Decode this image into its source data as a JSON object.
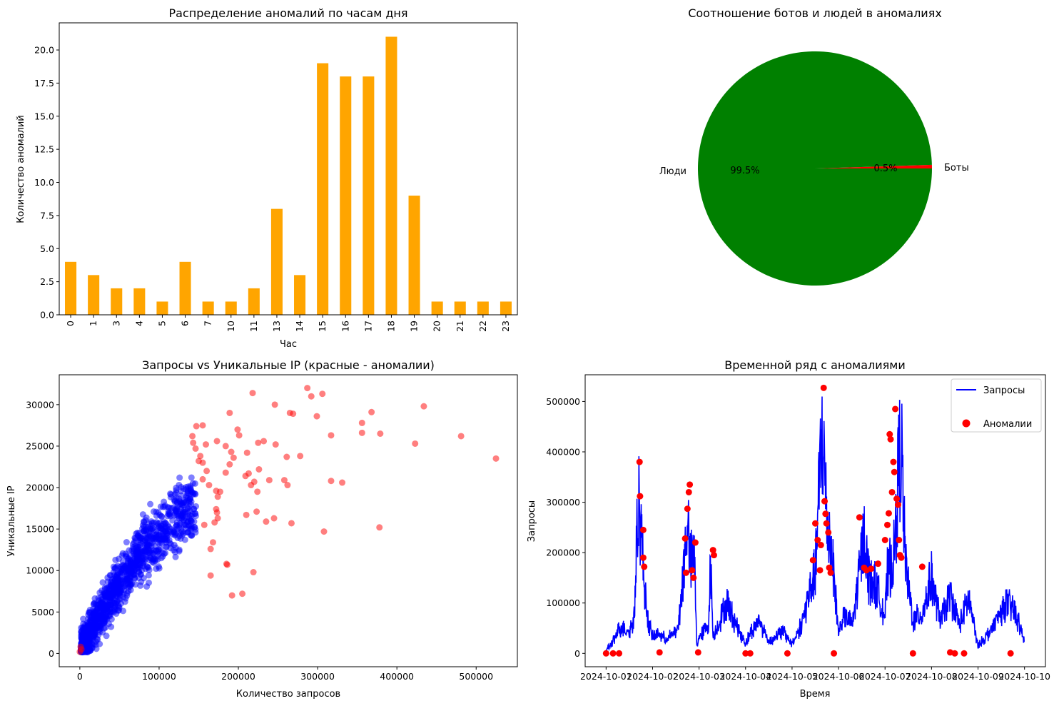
{
  "chart_data": [
    {
      "type": "bar",
      "title": "Распределение аномалий по часам дня",
      "xlabel": "Час",
      "ylabel": "Количество аномалий",
      "categories": [
        "0",
        "1",
        "3",
        "4",
        "5",
        "6",
        "7",
        "10",
        "11",
        "13",
        "14",
        "15",
        "16",
        "17",
        "18",
        "19",
        "20",
        "21",
        "22",
        "23"
      ],
      "values": [
        4,
        3,
        2,
        2,
        1,
        4,
        1,
        1,
        2,
        8,
        3,
        19,
        18,
        18,
        21,
        9,
        1,
        1,
        1,
        1
      ],
      "ylim": [
        0,
        22.05
      ],
      "yticks": [
        "0.0",
        "2.5",
        "5.0",
        "7.5",
        "10.0",
        "12.5",
        "15.0",
        "17.5",
        "20.0"
      ],
      "color": "#ffa500",
      "grid": false
    },
    {
      "type": "pie",
      "title": "Соотношение ботов и людей в аномалиях",
      "slices": [
        {
          "label": "Боты",
          "value": 0.5,
          "pct": "0.5%",
          "color": "#ff0000"
        },
        {
          "label": "Люди",
          "value": 99.5,
          "pct": "99.5%",
          "color": "#008000"
        }
      ]
    },
    {
      "type": "scatter",
      "title": "Запросы vs Уникальные IP (красные - аномалии)",
      "xlabel": "Количество запросов",
      "ylabel": "Уникальные IP",
      "xlim": [
        -26000,
        552000
      ],
      "ylim": [
        -1600,
        33600
      ],
      "xticks": [
        0,
        100000,
        200000,
        300000,
        400000,
        500000
      ],
      "yticks": [
        0,
        5000,
        10000,
        15000,
        20000,
        25000,
        30000
      ],
      "series": [
        {
          "name": "normal",
          "color": "#0000ff",
          "count": 1300
        },
        {
          "name": "anomaly",
          "color": "#ff0000",
          "points": [
            [
              218000,
              31400
            ],
            [
              287000,
              32000
            ],
            [
              292000,
              31000
            ],
            [
              306000,
              31300
            ],
            [
              246000,
              30000
            ],
            [
              265000,
              29000
            ],
            [
              269000,
              28900
            ],
            [
              299000,
              28600
            ],
            [
              368000,
              29100
            ],
            [
              434000,
              29800
            ],
            [
              189000,
              29000
            ],
            [
              356000,
              27800
            ],
            [
              155000,
              27500
            ],
            [
              147000,
              27400
            ],
            [
              199000,
              27000
            ],
            [
              201000,
              26300
            ],
            [
              173000,
              25600
            ],
            [
              159000,
              25200
            ],
            [
              143000,
              25400
            ],
            [
              184000,
              25000
            ],
            [
              142000,
              26200
            ],
            [
              211000,
              24200
            ],
            [
              232000,
              25600
            ],
            [
              225000,
              25400
            ],
            [
              247000,
              25200
            ],
            [
              261000,
              23700
            ],
            [
              278000,
              23800
            ],
            [
              226000,
              22200
            ],
            [
              213000,
              21700
            ],
            [
              209000,
              21400
            ],
            [
              220000,
              20700
            ],
            [
              216000,
              20300
            ],
            [
              239000,
              20900
            ],
            [
              224000,
              19500
            ],
            [
              258000,
              20900
            ],
            [
              262000,
              20300
            ],
            [
              317000,
              20800
            ],
            [
              331000,
              20600
            ],
            [
              317000,
              26300
            ],
            [
              356000,
              26600
            ],
            [
              379000,
              26500
            ],
            [
              423000,
              25300
            ],
            [
              481000,
              26200
            ],
            [
              525000,
              23500
            ],
            [
              172000,
              19600
            ],
            [
              177000,
              19500
            ],
            [
              172000,
              17400
            ],
            [
              173000,
              17000
            ],
            [
              210000,
              16700
            ],
            [
              223000,
              17100
            ],
            [
              245000,
              16300
            ],
            [
              235000,
              15900
            ],
            [
              267000,
              15700
            ],
            [
              308000,
              14700
            ],
            [
              378000,
              15200
            ],
            [
              174000,
              16300
            ],
            [
              157000,
              15500
            ],
            [
              165000,
              12600
            ],
            [
              168000,
              13400
            ],
            [
              174000,
              18900
            ],
            [
              163000,
              20300
            ],
            [
              184000,
              21800
            ],
            [
              189000,
              22800
            ],
            [
              194000,
              23600
            ],
            [
              191000,
              24300
            ],
            [
              160000,
              22000
            ],
            [
              155000,
              23000
            ],
            [
              150000,
              23200
            ],
            [
              146000,
              24700
            ],
            [
              165000,
              9400
            ],
            [
              185000,
              10800
            ],
            [
              186000,
              10700
            ],
            [
              192000,
              7000
            ],
            [
              205000,
              7200
            ],
            [
              219000,
              9800
            ],
            [
              155000,
              21000
            ],
            [
              152000,
              23800
            ],
            [
              170000,
              15800
            ],
            [
              0,
              200
            ],
            [
              2000,
              500
            ],
            [
              1000,
              800
            ]
          ]
        }
      ]
    },
    {
      "type": "line",
      "title": "Временной ряд с аномалиями",
      "xlabel": "Время",
      "ylabel": "Запросы",
      "xticks": [
        "2024-10-01",
        "2024-10-02",
        "2024-10-03",
        "2024-10-04",
        "2024-10-05",
        "2024-10-06",
        "2024-10-07",
        "2024-10-08",
        "2024-10-09",
        "2024-10-10"
      ],
      "xlim": [
        -0.45,
        9.45
      ],
      "ylim": [
        -26500,
        553000
      ],
      "yticks": [
        0,
        100000,
        200000,
        300000,
        400000,
        500000
      ],
      "legend_position": "top-right",
      "series": [
        {
          "name": "Запросы",
          "color": "#0000ff",
          "kind": "line"
        },
        {
          "name": "Аномалии",
          "color": "#ff0000",
          "kind": "scatter"
        }
      ],
      "peaks": [
        [
          0.0,
          0
        ],
        [
          0.15,
          20000
        ],
        [
          0.3,
          55000
        ],
        [
          0.5,
          45000
        ],
        [
          0.6,
          70000
        ],
        [
          0.7,
          380000
        ],
        [
          0.72,
          310000
        ],
        [
          0.78,
          245000
        ],
        [
          0.8,
          180000
        ],
        [
          0.9,
          70000
        ],
        [
          1.0,
          30000
        ],
        [
          1.1,
          40000
        ],
        [
          1.3,
          25000
        ],
        [
          1.55,
          50000
        ],
        [
          1.7,
          230000
        ],
        [
          1.75,
          335000
        ],
        [
          1.8,
          200000
        ],
        [
          1.9,
          220000
        ],
        [
          1.95,
          10000
        ],
        [
          2.0,
          30000
        ],
        [
          2.2,
          60000
        ],
        [
          2.25,
          205000
        ],
        [
          2.3,
          30000
        ],
        [
          2.5,
          85000
        ],
        [
          2.6,
          110000
        ],
        [
          2.8,
          60000
        ],
        [
          3.0,
          15000
        ],
        [
          3.1,
          40000
        ],
        [
          3.3,
          70000
        ],
        [
          3.5,
          20000
        ],
        [
          3.8,
          45000
        ],
        [
          4.0,
          15000
        ],
        [
          4.2,
          60000
        ],
        [
          4.5,
          185000
        ],
        [
          4.65,
          525000
        ],
        [
          4.75,
          300000
        ],
        [
          4.85,
          240000
        ],
        [
          5.0,
          40000
        ],
        [
          5.1,
          80000
        ],
        [
          5.3,
          60000
        ],
        [
          5.55,
          270000
        ],
        [
          5.65,
          170000
        ],
        [
          5.8,
          150000
        ],
        [
          6.0,
          80000
        ],
        [
          6.05,
          175000
        ],
        [
          6.2,
          225000
        ],
        [
          6.3,
          440000
        ],
        [
          6.35,
          485000
        ],
        [
          6.4,
          310000
        ],
        [
          6.45,
          190000
        ],
        [
          6.6,
          70000
        ],
        [
          6.8,
          85000
        ],
        [
          7.0,
          170000
        ],
        [
          7.1,
          110000
        ],
        [
          7.2,
          70000
        ],
        [
          7.4,
          130000
        ],
        [
          7.6,
          60000
        ],
        [
          7.8,
          120000
        ],
        [
          8.0,
          10000
        ],
        [
          8.3,
          50000
        ],
        [
          8.6,
          110000
        ],
        [
          8.8,
          90000
        ],
        [
          9.0,
          20000
        ],
        [
          9.2,
          60000
        ],
        [
          9.4,
          40000
        ]
      ],
      "anomalies": [
        [
          0.0,
          0
        ],
        [
          0.15,
          0
        ],
        [
          0.28,
          0
        ],
        [
          0.72,
          380000
        ],
        [
          0.73,
          312000
        ],
        [
          0.8,
          245000
        ],
        [
          0.8,
          190000
        ],
        [
          0.82,
          172000
        ],
        [
          1.15,
          2000
        ],
        [
          1.7,
          228000
        ],
        [
          1.72,
          160000
        ],
        [
          1.75,
          287000
        ],
        [
          1.78,
          320000
        ],
        [
          1.8,
          335000
        ],
        [
          1.85,
          165000
        ],
        [
          1.88,
          150000
        ],
        [
          1.92,
          220000
        ],
        [
          1.98,
          2000
        ],
        [
          2.3,
          205000
        ],
        [
          2.32,
          195000
        ],
        [
          3.0,
          0
        ],
        [
          3.1,
          0
        ],
        [
          3.9,
          0
        ],
        [
          4.45,
          185000
        ],
        [
          4.5,
          258000
        ],
        [
          4.55,
          225000
        ],
        [
          4.6,
          165000
        ],
        [
          4.62,
          215000
        ],
        [
          4.68,
          527000
        ],
        [
          4.7,
          302000
        ],
        [
          4.72,
          277000
        ],
        [
          4.74,
          258000
        ],
        [
          4.78,
          240000
        ],
        [
          4.8,
          170000
        ],
        [
          4.83,
          160000
        ],
        [
          4.9,
          0
        ],
        [
          5.45,
          270000
        ],
        [
          5.55,
          170000
        ],
        [
          5.6,
          165000
        ],
        [
          5.7,
          168000
        ],
        [
          5.85,
          178000
        ],
        [
          6.0,
          225000
        ],
        [
          6.05,
          255000
        ],
        [
          6.08,
          278000
        ],
        [
          6.1,
          435000
        ],
        [
          6.12,
          425000
        ],
        [
          6.15,
          320000
        ],
        [
          6.18,
          380000
        ],
        [
          6.2,
          360000
        ],
        [
          6.22,
          485000
        ],
        [
          6.25,
          307000
        ],
        [
          6.28,
          295000
        ],
        [
          6.3,
          225000
        ],
        [
          6.32,
          195000
        ],
        [
          6.35,
          190000
        ],
        [
          6.6,
          0
        ],
        [
          6.8,
          172000
        ],
        [
          7.4,
          2000
        ],
        [
          7.5,
          0
        ],
        [
          7.7,
          0
        ],
        [
          8.7,
          0
        ]
      ]
    }
  ]
}
